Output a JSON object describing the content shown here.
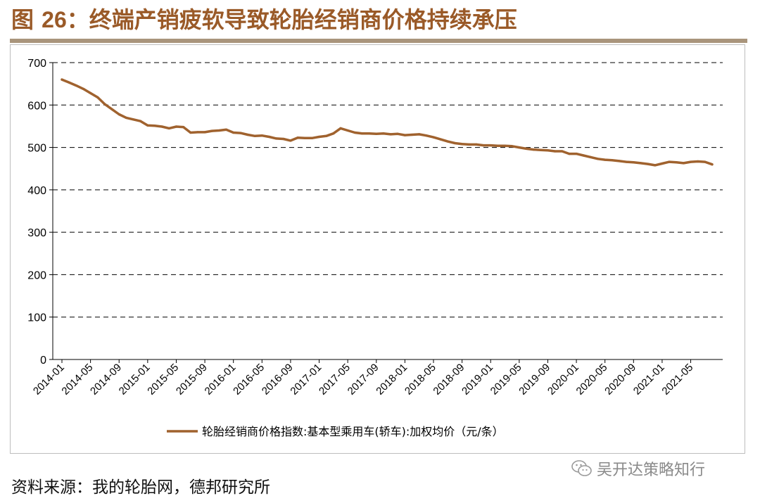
{
  "header": {
    "title_prefix": "图 ",
    "title_number": "26",
    "title_text": "：终端产销疲软导致轮胎经销商价格持续承压"
  },
  "footer": {
    "source": "资料来源：我的轮胎网，德邦研究所",
    "watermark": "吴开达策略知行",
    "watermark_icon": "wechat-icon"
  },
  "colors": {
    "line": "#a0622e",
    "title": "#9a5a28",
    "rule": "#a9957c"
  },
  "chart_data": {
    "type": "line",
    "ylim": [
      0,
      700
    ],
    "yticks": [
      0,
      100,
      200,
      300,
      400,
      500,
      600,
      700
    ],
    "grid": "horizontal-dashed",
    "legend_position": "bottom",
    "tick_labels": [
      "2014-01",
      "2014-05",
      "2014-09",
      "2015-01",
      "2015-05",
      "2015-09",
      "2016-01",
      "2016-05",
      "2016-09",
      "2017-01",
      "2017-05",
      "2017-09",
      "2018-01",
      "2018-05",
      "2018-09",
      "2019-01",
      "2019-05",
      "2019-09",
      "2020-01",
      "2020-05",
      "2020-09",
      "2021-01",
      "2021-05"
    ],
    "series": [
      {
        "name": "轮胎经销商价格指数:基本型乘用车(轿车):加权均价（元/条）",
        "x": [
          "2014-01",
          "2014-02",
          "2014-03",
          "2014-04",
          "2014-05",
          "2014-06",
          "2014-07",
          "2014-08",
          "2014-09",
          "2014-10",
          "2014-11",
          "2014-12",
          "2015-01",
          "2015-02",
          "2015-03",
          "2015-04",
          "2015-05",
          "2015-06",
          "2015-07",
          "2015-08",
          "2015-09",
          "2015-10",
          "2015-11",
          "2015-12",
          "2016-01",
          "2016-02",
          "2016-03",
          "2016-04",
          "2016-05",
          "2016-06",
          "2016-07",
          "2016-08",
          "2016-09",
          "2016-10",
          "2016-11",
          "2016-12",
          "2017-01",
          "2017-02",
          "2017-03",
          "2017-04",
          "2017-05",
          "2017-06",
          "2017-07",
          "2017-08",
          "2017-09",
          "2017-10",
          "2017-11",
          "2017-12",
          "2018-01",
          "2018-02",
          "2018-03",
          "2018-04",
          "2018-05",
          "2018-06",
          "2018-07",
          "2018-08",
          "2018-09",
          "2018-10",
          "2018-11",
          "2018-12",
          "2019-01",
          "2019-02",
          "2019-03",
          "2019-04",
          "2019-05",
          "2019-06",
          "2019-07",
          "2019-08",
          "2019-09",
          "2019-10",
          "2019-11",
          "2019-12",
          "2020-01",
          "2020-02",
          "2020-03",
          "2020-04",
          "2020-05",
          "2020-06",
          "2020-07",
          "2020-08",
          "2020-09",
          "2020-10",
          "2020-11",
          "2020-12",
          "2021-01",
          "2021-02",
          "2021-03",
          "2021-04",
          "2021-05",
          "2021-06",
          "2021-07",
          "2021-08"
        ],
        "values": [
          660,
          653,
          646,
          638,
          628,
          618,
          602,
          590,
          578,
          570,
          566,
          562,
          552,
          551,
          549,
          545,
          549,
          548,
          535,
          536,
          536,
          539,
          540,
          542,
          535,
          534,
          530,
          527,
          528,
          525,
          521,
          520,
          516,
          523,
          522,
          522,
          525,
          527,
          533,
          545,
          540,
          535,
          533,
          533,
          532,
          533,
          531,
          532,
          529,
          530,
          531,
          528,
          524,
          519,
          514,
          510,
          508,
          507,
          507,
          505,
          505,
          504,
          504,
          503,
          500,
          497,
          495,
          494,
          493,
          491,
          491,
          485,
          485,
          481,
          477,
          473,
          471,
          470,
          468,
          466,
          465,
          463,
          461,
          458,
          462,
          466,
          465,
          463,
          466,
          467,
          466,
          460
        ]
      }
    ]
  }
}
